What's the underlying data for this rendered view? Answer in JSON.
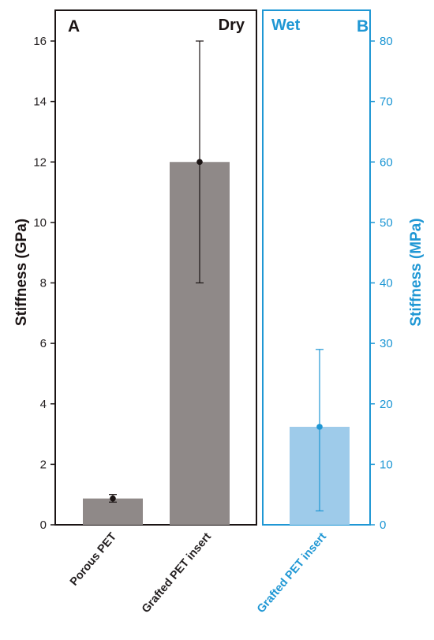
{
  "colors": {
    "dry": "#1b1414",
    "wet": "#1f97d4",
    "dry_bar": "#8f8988",
    "wet_bar": "#9ecbea",
    "dry_axis_label": "#231f20"
  },
  "chart_data": [
    {
      "type": "bar",
      "panel": "A",
      "condition": "Dry",
      "ylabel": "Stiffness (GPa)",
      "ylim": [
        0,
        17
      ],
      "yticks": [
        0,
        2,
        4,
        6,
        8,
        10,
        12,
        14,
        16
      ],
      "categories": [
        "Porous PET",
        "Grafted PET insert"
      ],
      "values": [
        0.87,
        12.0
      ],
      "error_low": [
        0.75,
        8.0
      ],
      "error_high": [
        1.0,
        16.0
      ],
      "legend": "none"
    },
    {
      "type": "bar",
      "panel": "B",
      "condition": "Wet",
      "ylabel": "Stiffness (MPa)",
      "ylim": [
        0,
        85
      ],
      "yticks": [
        0,
        10,
        20,
        30,
        40,
        50,
        60,
        70,
        80
      ],
      "categories": [
        "Grafted PET insert"
      ],
      "values": [
        16.2
      ],
      "error_low": [
        2.3
      ],
      "error_high": [
        29.0
      ],
      "legend": "none"
    }
  ]
}
